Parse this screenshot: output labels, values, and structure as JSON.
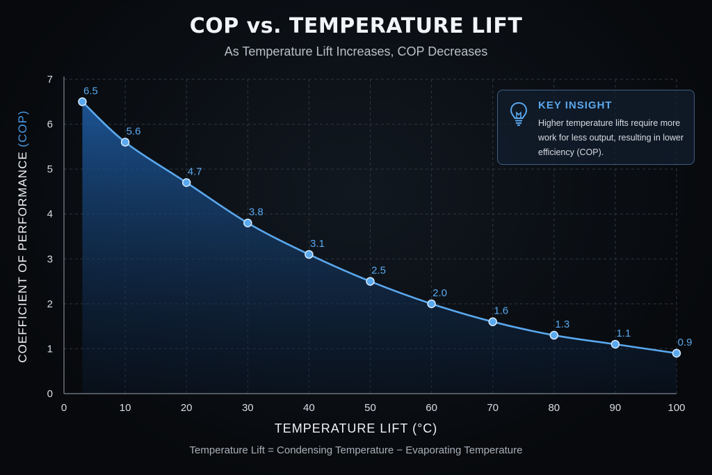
{
  "chart_data": {
    "type": "area",
    "title": "COP vs. TEMPERATURE LIFT",
    "subtitle": "As Temperature Lift Increases, COP Decreases",
    "xlabel": "TEMPERATURE LIFT (°C)",
    "ylabel_main": "COEFFICIENT OF PERFORMANCE ",
    "ylabel_accent": "(COP)",
    "xlim": [
      0,
      100
    ],
    "ylim": [
      0,
      7
    ],
    "x_ticks": [
      0,
      10,
      20,
      30,
      40,
      50,
      60,
      70,
      80,
      90,
      100
    ],
    "y_ticks": [
      0,
      1,
      2,
      3,
      4,
      5,
      6,
      7
    ],
    "grid": true,
    "series": [
      {
        "x": [
          3,
          10,
          20,
          30,
          40,
          50,
          60,
          70,
          80,
          90,
          100
        ],
        "values": [
          6.5,
          5.6,
          4.7,
          3.8,
          3.1,
          2.5,
          2.0,
          1.6,
          1.3,
          1.1,
          0.9
        ],
        "labels": [
          "6.5",
          "5.6",
          "4.7",
          "3.8",
          "3.1",
          "2.5",
          "2.0",
          "1.6",
          "1.3",
          "1.1",
          "0.9"
        ]
      }
    ],
    "footnote": "Temperature Lift = Condensing Temperature − Evaporating Temperature",
    "colors": {
      "line": "#5aa8ee",
      "fill": "#1f5fa8",
      "grid": "#2f3742",
      "axis": "#7f8791"
    }
  },
  "insight": {
    "title": "KEY INSIGHT",
    "icon": "lightbulb-icon",
    "text": "Higher temperature lifts require more work for less output, resulting in lower efficiency (COP)."
  }
}
